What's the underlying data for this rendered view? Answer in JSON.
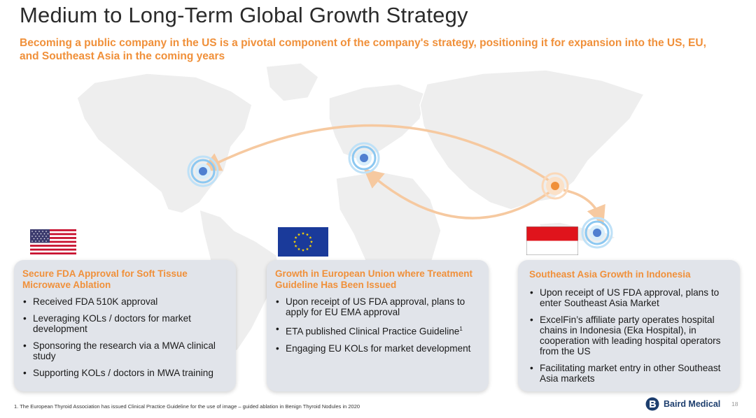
{
  "title": "Medium to Long-Term Global Growth Strategy",
  "subtitle": "Becoming a public company in the US is a pivotal component of the company's strategy, positioning it for expansion into the US, EU, and Southeast Asia in the coming years",
  "colors": {
    "accent": "#f0903a",
    "marker_blue": "#4f7fd0",
    "card_bg": "#e1e4ea",
    "logo_blue": "#1d3e6e"
  },
  "flags": [
    {
      "name": "us-flag-icon",
      "country": "US"
    },
    {
      "name": "eu-flag-icon",
      "country": "EU"
    },
    {
      "name": "indonesia-flag-icon",
      "country": "Indonesia"
    }
  ],
  "cards": [
    {
      "heading": "Secure FDA Approval for Soft Tissue Microwave Ablation",
      "bullets": [
        "Received FDA 510K approval",
        "Leveraging KOLs / doctors for market development",
        "Sponsoring the research via a MWA clinical study",
        "Supporting KOLs / doctors in MWA training"
      ]
    },
    {
      "heading": "Growth in European Union where Treatment Guideline Has Been Issued",
      "bullets": [
        "Upon receipt of US FDA approval, plans to apply for EU EMA approval",
        "ETA published Clinical Practice Guideline",
        "Engaging EU KOLs for market development"
      ],
      "bullet_2_sup": "1"
    },
    {
      "heading": "Southeast Asia Growth in Indonesia",
      "bullets": [
        "Upon receipt of US FDA approval, plans to enter Southeast Asia Market",
        "ExcelFin’s affiliate party operates hospital chains in Indonesia (Eka Hospital), in cooperation with leading hospital operators from the US",
        "Facilitating market entry in other Southeast Asia markets"
      ]
    }
  ],
  "footnote": "1. The European Thyroid Association has issued Clinical Practice Guideline for the use of image – guided ablation in Benign Thyroid Nodules in 2020",
  "logo": {
    "text": "Baird Medical",
    "icon": "baird-logo-icon"
  },
  "page_number": "18"
}
